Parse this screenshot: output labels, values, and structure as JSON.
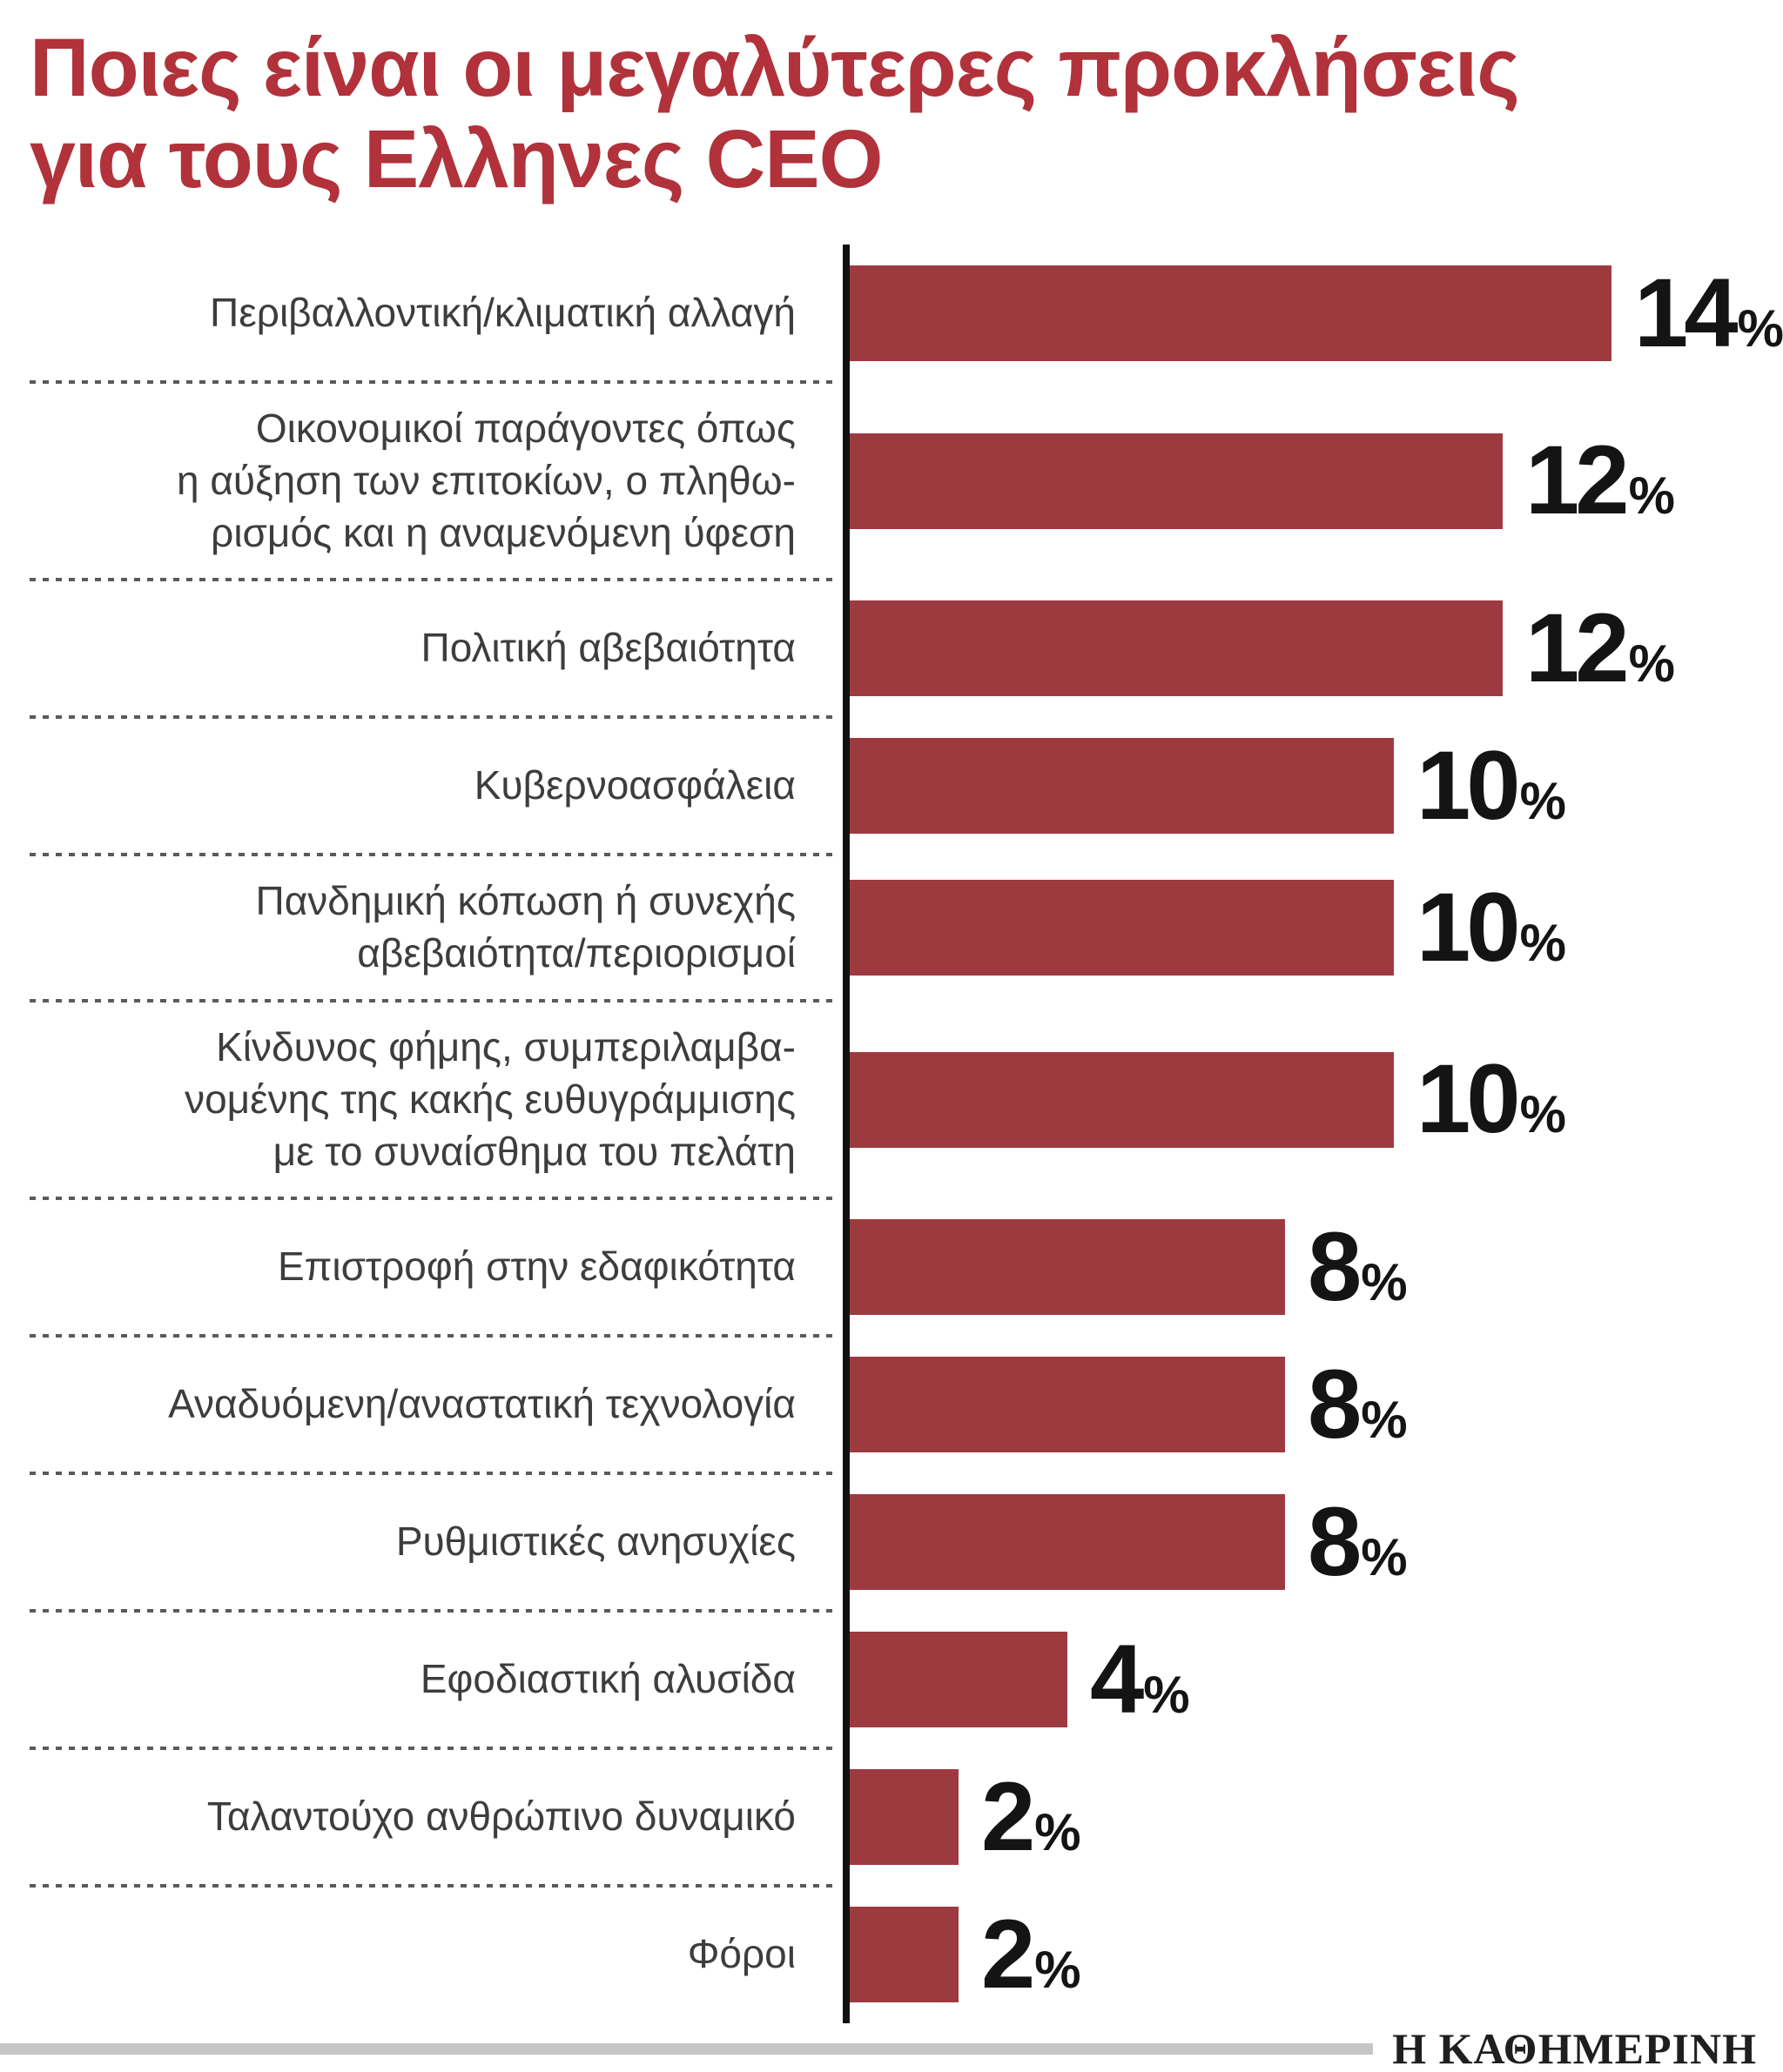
{
  "header": {
    "title": "Ποιες είναι οι μεγαλύτερες προκλήσεις\nγια τους Ελληνες CEO"
  },
  "footer": {
    "brand": "Η ΚΑΘΗΜΕΡΙΝΗ"
  },
  "colors": {
    "bar": "#9d3a40",
    "title": "#b1323a",
    "axis": "#111111",
    "label_text": "#3d3d3d",
    "value_text": "#141414",
    "footer_rule": "#c6c6c6"
  },
  "chart_data": {
    "type": "bar",
    "orientation": "horizontal",
    "title": "Ποιες είναι οι μεγαλύτερες προκλήσεις για τους Ελληνες CEO",
    "unit": "%",
    "xlim": [
      0,
      16
    ],
    "grid": false,
    "legend": false,
    "value_labels": true,
    "categories": [
      "Περιβαλλοντική/κλιματική αλλαγή",
      "Οικονομικοί παράγοντες όπως\nη αύξηση των επιτοκίων, ο πληθω-\nρισμός και η αναμενόμενη ύφεση",
      "Πολιτική αβεβαιότητα",
      "Κυβερνοασφάλεια",
      "Πανδημική κόπωση ή συνεχής\nαβεβαιότητα/περιορισμοί",
      "Κίνδυνος φήμης, συμπεριλαμβα-\nνομένης της κακής ευθυγράμμισης\nμε το συναίσθημα του πελάτη",
      "Επιστροφή στην εδαφικότητα",
      "Αναδυόμενη/αναστατική τεχνολογία",
      "Ρυθμιστικές ανησυχίες",
      "Εφοδιαστική αλυσίδα",
      "Ταλαντούχο ανθρώπινο δυναμικό",
      "Φόροι"
    ],
    "values": [
      14,
      12,
      12,
      10,
      10,
      10,
      8,
      8,
      8,
      4,
      2,
      2
    ]
  }
}
